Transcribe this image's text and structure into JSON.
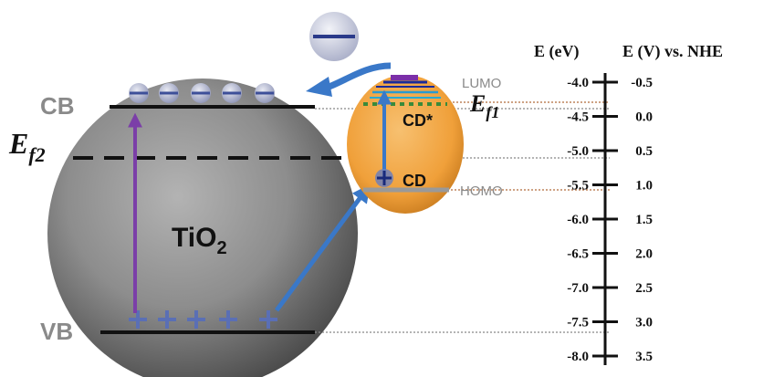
{
  "diagram": {
    "tio2": {
      "label_main": "TiO",
      "label_sub": "2",
      "cb_label": "CB",
      "vb_label": "VB",
      "ef2_main": "E",
      "ef2_sub": "f2"
    },
    "cd": {
      "lumo_label": "LUMO",
      "homo_label": "HOMO",
      "cd_star_label": "CD*",
      "cd_label": "CD",
      "ef1_main": "E",
      "ef1_sub": "f1"
    },
    "scale": {
      "left_header": "E (eV)",
      "right_header": "E (V) vs. NHE",
      "ev_ticks": [
        "-4.0",
        "-4.5",
        "-5.0",
        "-5.5",
        "-6.0",
        "-6.5",
        "-7.0",
        "-7.5",
        "-8.0"
      ],
      "nhe_ticks": [
        "-0.5",
        "0.0",
        "0.5",
        "1.0",
        "1.5",
        "2.0",
        "2.5",
        "3.0",
        "3.5"
      ]
    },
    "colors": {
      "tio2_sphere": "#8a8a8a",
      "cd_sphere": "#f0a640",
      "electron": "#6f7fb8",
      "hole_plus": "#5a6fb5",
      "transfer_arrow": "#3a78c8",
      "excitation_arrow": "#7b3fa8",
      "level_line": "#111111",
      "guide_dotted": "#b06a3a"
    },
    "icons": [
      "electron-icon",
      "hole-icon",
      "arrow-icon"
    ]
  }
}
